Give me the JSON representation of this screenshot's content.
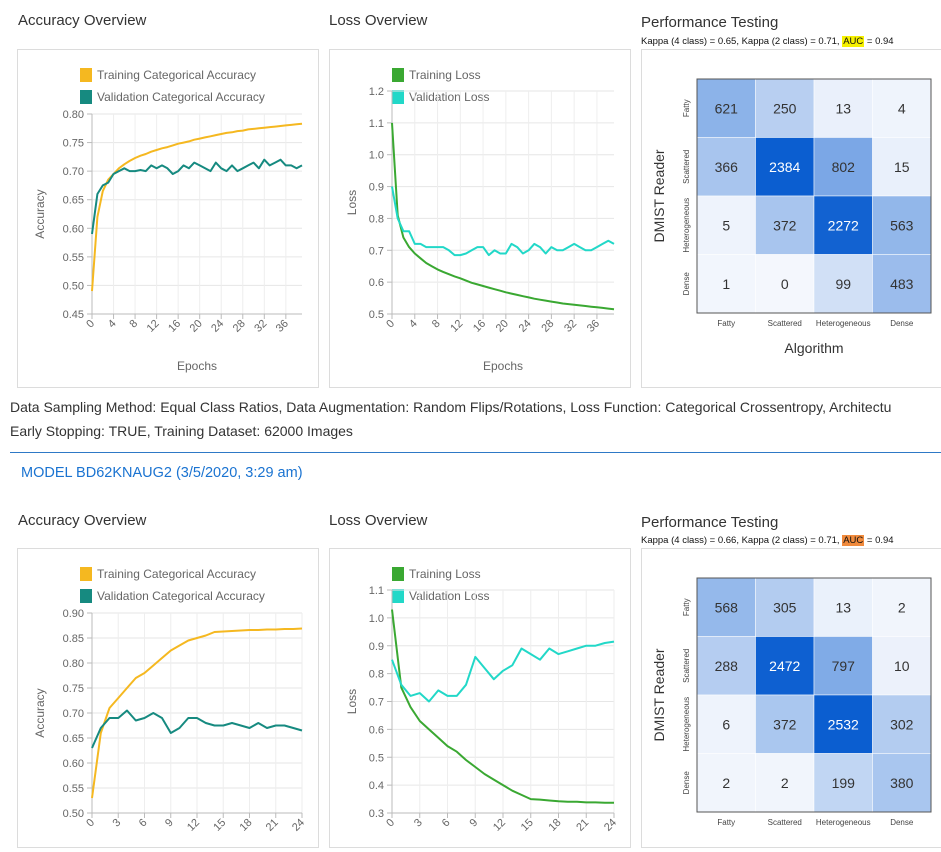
{
  "colors": {
    "train_acc": "#f5b820",
    "val_acc": "#168a80",
    "train_loss": "#3aa832",
    "val_loss": "#22d8c8",
    "cm_low": "#f4f7fd",
    "cm_high": "#0b5ed0"
  },
  "description": {
    "line1": "Data Sampling Method: Equal Class Ratios, Data Augmentation: Random Flips/Rotations, Loss Function: Categorical Crossentropy, Architectu",
    "line2": "Early Stopping: TRUE, Training Dataset: 62000 Images"
  },
  "models": [
    {
      "accuracy": {
        "section_title": "Accuracy Overview",
        "chart_data": {
          "type": "line",
          "xlabel": "Epochs",
          "ylabel": "Accuracy",
          "ylim": [
            0.45,
            0.8
          ],
          "y_ticks": [
            "0.45",
            "0.50",
            "0.55",
            "0.60",
            "0.65",
            "0.70",
            "0.75",
            "0.80"
          ],
          "x_ticks": [
            "0",
            "4",
            "8",
            "12",
            "16",
            "20",
            "24",
            "28",
            "32",
            "36"
          ],
          "x_max": 39,
          "series": [
            {
              "name": "Training Categorical Accuracy",
              "color_key": "train_acc",
              "values": [
                0.49,
                0.62,
                0.665,
                0.685,
                0.695,
                0.705,
                0.712,
                0.718,
                0.723,
                0.727,
                0.73,
                0.734,
                0.737,
                0.74,
                0.742,
                0.745,
                0.748,
                0.75,
                0.752,
                0.755,
                0.757,
                0.759,
                0.761,
                0.763,
                0.765,
                0.767,
                0.768,
                0.77,
                0.771,
                0.773,
                0.774,
                0.775,
                0.776,
                0.777,
                0.778,
                0.779,
                0.78,
                0.781,
                0.782,
                0.783
              ]
            },
            {
              "name": "Validation Categorical Accuracy",
              "color_key": "val_acc",
              "values": [
                0.59,
                0.66,
                0.675,
                0.68,
                0.695,
                0.7,
                0.705,
                0.7,
                0.7,
                0.702,
                0.7,
                0.71,
                0.705,
                0.71,
                0.705,
                0.695,
                0.7,
                0.71,
                0.705,
                0.715,
                0.71,
                0.705,
                0.7,
                0.715,
                0.705,
                0.7,
                0.71,
                0.7,
                0.705,
                0.71,
                0.715,
                0.705,
                0.72,
                0.71,
                0.715,
                0.72,
                0.71,
                0.71,
                0.705,
                0.71
              ]
            }
          ]
        }
      },
      "loss": {
        "section_title": "Loss Overview",
        "chart_data": {
          "type": "line",
          "xlabel": "Epochs",
          "ylabel": "Loss",
          "ylim": [
            0.5,
            1.2
          ],
          "y_ticks": [
            "0.5",
            "0.6",
            "0.7",
            "0.8",
            "0.9",
            "1.0",
            "1.1",
            "1.2"
          ],
          "x_ticks": [
            "0",
            "4",
            "8",
            "12",
            "16",
            "20",
            "24",
            "28",
            "32",
            "36"
          ],
          "x_max": 39,
          "series": [
            {
              "name": "Training Loss",
              "color_key": "train_loss",
              "values": [
                1.1,
                0.81,
                0.74,
                0.71,
                0.69,
                0.675,
                0.66,
                0.65,
                0.64,
                0.632,
                0.625,
                0.618,
                0.612,
                0.605,
                0.598,
                0.593,
                0.588,
                0.583,
                0.578,
                0.573,
                0.568,
                0.564,
                0.56,
                0.556,
                0.552,
                0.548,
                0.545,
                0.542,
                0.539,
                0.536,
                0.533,
                0.531,
                0.529,
                0.527,
                0.525,
                0.523,
                0.521,
                0.519,
                0.517,
                0.515
              ]
            },
            {
              "name": "Validation Loss",
              "color_key": "val_loss",
              "values": [
                0.9,
                0.8,
                0.76,
                0.76,
                0.72,
                0.72,
                0.71,
                0.71,
                0.71,
                0.71,
                0.7,
                0.685,
                0.685,
                0.69,
                0.7,
                0.71,
                0.71,
                0.685,
                0.7,
                0.69,
                0.69,
                0.72,
                0.71,
                0.69,
                0.7,
                0.72,
                0.71,
                0.69,
                0.71,
                0.7,
                0.7,
                0.71,
                0.72,
                0.71,
                0.7,
                0.7,
                0.71,
                0.72,
                0.73,
                0.72
              ]
            }
          ]
        }
      },
      "performance": {
        "section_title": "Performance Testing",
        "kappa_text": "Kappa (4 class) = 0.65, Kappa (2 class) = 0.71, ",
        "auc_label": "AUC",
        "auc_value": " = 0.94",
        "auc_style": "yellow",
        "chart_data": {
          "type": "heatmap",
          "ylabel": "DMIST Reader",
          "xlabel": "Algorithm",
          "rows": [
            "Fatty",
            "Scattered",
            "Heterogeneous",
            "Dense"
          ],
          "cols": [
            "Fatty",
            "Scattered",
            "Heterogeneous",
            "Dense"
          ],
          "values": [
            [
              621,
              250,
              13,
              4
            ],
            [
              366,
              2384,
              802,
              15
            ],
            [
              5,
              372,
              2272,
              563
            ],
            [
              1,
              0,
              99,
              483
            ]
          ]
        }
      }
    },
    {
      "header": "MODEL BD62KNAUG2 (3/5/2020, 3:29 am)",
      "accuracy": {
        "section_title": "Accuracy Overview",
        "chart_data": {
          "type": "line",
          "xlabel": "",
          "ylabel": "Accuracy",
          "ylim": [
            0.5,
            0.9
          ],
          "y_ticks": [
            "0.50",
            "0.55",
            "0.60",
            "0.65",
            "0.70",
            "0.75",
            "0.80",
            "0.85",
            "0.90"
          ],
          "x_ticks": [
            "0",
            "3",
            "6",
            "9",
            "12",
            "15",
            "18",
            "21",
            "24"
          ],
          "x_max": 24,
          "series": [
            {
              "name": "Training Categorical Accuracy",
              "color_key": "train_acc",
              "values": [
                0.53,
                0.66,
                0.71,
                0.73,
                0.75,
                0.77,
                0.78,
                0.795,
                0.81,
                0.825,
                0.835,
                0.845,
                0.85,
                0.855,
                0.862,
                0.863,
                0.864,
                0.865,
                0.866,
                0.866,
                0.867,
                0.867,
                0.868,
                0.868,
                0.869
              ]
            },
            {
              "name": "Validation Categorical Accuracy",
              "color_key": "val_acc",
              "values": [
                0.63,
                0.67,
                0.69,
                0.69,
                0.705,
                0.685,
                0.69,
                0.7,
                0.69,
                0.66,
                0.67,
                0.69,
                0.69,
                0.68,
                0.675,
                0.675,
                0.68,
                0.675,
                0.67,
                0.68,
                0.67,
                0.675,
                0.675,
                0.67,
                0.665
              ]
            }
          ]
        }
      },
      "loss": {
        "section_title": "Loss Overview",
        "chart_data": {
          "type": "line",
          "xlabel": "",
          "ylabel": "Loss",
          "ylim": [
            0.3,
            1.1
          ],
          "y_ticks": [
            "0.3",
            "0.4",
            "0.5",
            "0.6",
            "0.7",
            "0.8",
            "0.9",
            "1.0",
            "1.1"
          ],
          "x_ticks": [
            "0",
            "3",
            "6",
            "9",
            "12",
            "15",
            "18",
            "21",
            "24"
          ],
          "x_max": 24,
          "series": [
            {
              "name": "Training Loss",
              "color_key": "train_loss",
              "values": [
                1.03,
                0.75,
                0.68,
                0.63,
                0.6,
                0.57,
                0.54,
                0.52,
                0.49,
                0.465,
                0.44,
                0.42,
                0.4,
                0.38,
                0.365,
                0.35,
                0.348,
                0.345,
                0.342,
                0.34,
                0.34,
                0.338,
                0.338,
                0.337,
                0.337
              ]
            },
            {
              "name": "Validation Loss",
              "color_key": "val_loss",
              "values": [
                0.85,
                0.76,
                0.72,
                0.73,
                0.7,
                0.74,
                0.72,
                0.72,
                0.76,
                0.86,
                0.82,
                0.78,
                0.81,
                0.83,
                0.89,
                0.87,
                0.85,
                0.89,
                0.87,
                0.88,
                0.89,
                0.9,
                0.9,
                0.91,
                0.915
              ]
            }
          ]
        }
      },
      "performance": {
        "section_title": "Performance Testing",
        "kappa_text": "Kappa (4 class) = 0.66, Kappa (2 class) = 0.71, ",
        "auc_label": "AUC",
        "auc_value": " = 0.94",
        "auc_style": "orange",
        "chart_data": {
          "type": "heatmap",
          "ylabel": "DMIST Reader",
          "xlabel": "",
          "rows": [
            "Fatty",
            "Scattered",
            "Heterogeneous",
            "Dense"
          ],
          "cols": [
            "Fatty",
            "Scattered",
            "Heterogeneous",
            "Dense"
          ],
          "values": [
            [
              568,
              305,
              13,
              2
            ],
            [
              288,
              2472,
              797,
              10
            ],
            [
              6,
              372,
              2532,
              302
            ],
            [
              2,
              2,
              199,
              380
            ]
          ]
        }
      }
    }
  ]
}
